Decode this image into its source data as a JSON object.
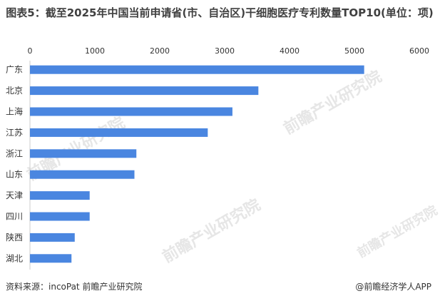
{
  "chart_data": {
    "type": "bar",
    "orientation": "horizontal",
    "title": "图表5：截至2025年中国当前申请省(市、自治区)干细胞医疗专利数量TOP10(单位：项)",
    "categories": [
      "广东",
      "北京",
      "上海",
      "江苏",
      "浙江",
      "山东",
      "天津",
      "四川",
      "陕西",
      "湖北"
    ],
    "values": [
      5150,
      3520,
      3120,
      2740,
      1640,
      1610,
      920,
      920,
      690,
      640
    ],
    "xlim": [
      0,
      6000
    ],
    "xticks": [
      "0",
      "1000",
      "2000",
      "3000",
      "4000",
      "5000",
      "6000"
    ],
    "xlabel": "",
    "ylabel": "",
    "grid": false,
    "bar_color": "#4a86e0"
  },
  "footer": {
    "source": "资料来源：incoPat 前瞻产业研究院",
    "credit": "@前瞻经济学人APP"
  },
  "watermark": {
    "text": "前瞻产业研究院"
  }
}
